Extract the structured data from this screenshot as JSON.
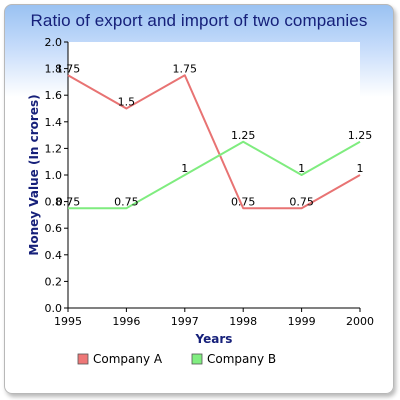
{
  "chart_data": {
    "type": "line",
    "title": "Ratio of export and import of two companies",
    "xlabel": "Years",
    "ylabel": "Money Value (In crores)",
    "categories": [
      "1995",
      "1996",
      "1997",
      "1998",
      "1999",
      "2000"
    ],
    "ylim": [
      0,
      2.0
    ],
    "yticks": [
      "0.0",
      "0.2",
      "0.4",
      "0.6",
      "0.8",
      "1.0",
      "1.2",
      "1.4",
      "1.6",
      "1.8",
      "2.0"
    ],
    "grid": false,
    "legend_position": "bottom",
    "series": [
      {
        "name": "Company A",
        "color": "#ee7777",
        "values": [
          1.75,
          1.5,
          1.75,
          0.75,
          0.75,
          1
        ],
        "labels": [
          "1.75",
          "1.5",
          "1.75",
          "0.75",
          "0.75",
          "1"
        ]
      },
      {
        "name": "Company B",
        "color": "#80ee80",
        "values": [
          0.75,
          0.75,
          1,
          1.25,
          1,
          1.25
        ],
        "labels": [
          "0.75",
          "0.75",
          "1",
          "1.25",
          "1",
          "1.25"
        ]
      }
    ]
  }
}
